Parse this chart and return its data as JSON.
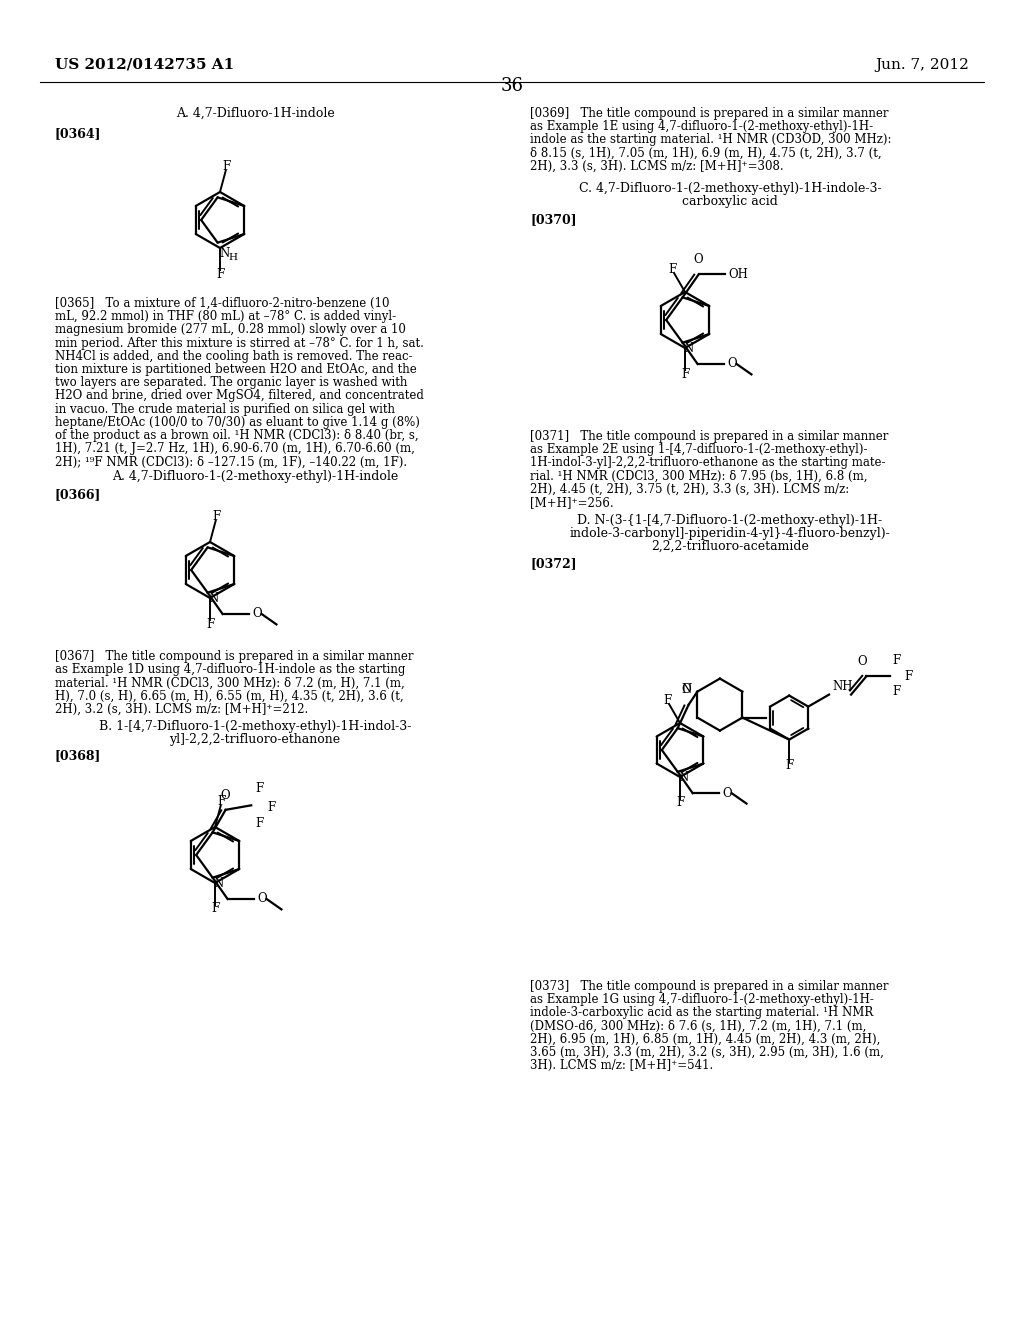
{
  "bg": "#ffffff",
  "header_left": "US 2012/0142735 A1",
  "header_right": "Jun. 7, 2012",
  "page_num": "36",
  "texts": {
    "sec_a1": "A. 4,7-Difluoro-1H-indole",
    "ref364": "[0364]",
    "par365_lines": [
      "[0365]   To a mixture of 1,4-difluoro-2-nitro-benzene (10",
      "mL, 92.2 mmol) in THF (80 mL) at –78° C. is added vinyl-",
      "magnesium bromide (277 mL, 0.28 mmol) slowly over a 10",
      "min period. After this mixture is stirred at –78° C. for 1 h, sat.",
      "NH4Cl is added, and the cooling bath is removed. The reac-",
      "tion mixture is partitioned between H2O and EtOAc, and the",
      "two layers are separated. The organic layer is washed with",
      "H2O and brine, dried over MgSO4, filtered, and concentrated",
      "in vacuo. The crude material is purified on silica gel with",
      "heptane/EtOAc (100/0 to 70/30) as eluant to give 1.14 g (8%)",
      "of the product as a brown oil. ¹H NMR (CDCl3): δ 8.40 (br, s,",
      "1H), 7.21 (t, J=2.7 Hz, 1H), 6.90-6.70 (m, 1H), 6.70-6.60 (m,",
      "2H); ¹⁹F NMR (CDCl3): δ –127.15 (m, 1F), –140.22 (m, 1F)."
    ],
    "sec_a2": "A. 4,7-Difluoro-1-(2-methoxy-ethyl)-1H-indole",
    "ref366": "[0366]",
    "par367_lines": [
      "[0367]   The title compound is prepared in a similar manner",
      "as Example 1D using 4,7-difluoro-1H-indole as the starting",
      "material. ¹H NMR (CDCl3, 300 MHz): δ 7.2 (m, H), 7.1 (m,",
      "H), 7.0 (s, H), 6.65 (m, H), 6.55 (m, H), 4.35 (t, 2H), 3.6 (t,",
      "2H), 3.2 (s, 3H). LCMS m/z: [M+H]⁺=212."
    ],
    "sec_b": [
      "B. 1-[4,7-Difluoro-1-(2-methoxy-ethyl)-1H-indol-3-",
      "yl]-2,2,2-trifluoro-ethanone"
    ],
    "ref368": "[0368]",
    "par369_lines": [
      "[0369]   The title compound is prepared in a similar manner",
      "as Example 1E using 4,7-difluoro-1-(2-methoxy-ethyl)-1H-",
      "indole as the starting material. ¹H NMR (CD3OD, 300 MHz):",
      "δ 8.15 (s, 1H), 7.05 (m, 1H), 6.9 (m, H), 4.75 (t, 2H), 3.7 (t,",
      "2H), 3.3 (s, 3H). LCMS m/z: [M+H]⁺=308."
    ],
    "sec_c": [
      "C. 4,7-Difluoro-1-(2-methoxy-ethyl)-1H-indole-3-",
      "carboxylic acid"
    ],
    "ref370": "[0370]",
    "par371_lines": [
      "[0371]   The title compound is prepared in a similar manner",
      "as Example 2E using 1-[4,7-difluoro-1-(2-methoxy-ethyl)-",
      "1H-indol-3-yl]-2,2,2-trifluoro-ethanone as the starting mate-",
      "rial. ¹H NMR (CDCl3, 300 MHz): δ 7.95 (bs, 1H), 6.8 (m,",
      "2H), 4.45 (t, 2H), 3.75 (t, 2H), 3.3 (s, 3H). LCMS m/z:",
      "[M+H]⁺=256."
    ],
    "sec_d": [
      "D. N-(3-{1-[4,7-Difluoro-1-(2-methoxy-ethyl)-1H-",
      "indole-3-carbonyl]-piperidin-4-yl}-4-fluoro-benzyl)-",
      "2,2,2-trifluoro-acetamide"
    ],
    "ref372": "[0372]",
    "par373_lines": [
      "[0373]   The title compound is prepared in a similar manner",
      "as Example 1G using 4,7-difluoro-1-(2-methoxy-ethyl)-1H-",
      "indole-3-carboxylic acid as the starting material. ¹H NMR",
      "(DMSO-d6, 300 MHz): δ 7.6 (s, 1H), 7.2 (m, 1H), 7.1 (m,",
      "2H), 6.95 (m, 1H), 6.85 (m, 1H), 4.45 (m, 2H), 4.3 (m, 2H),",
      "3.65 (m, 3H), 3.3 (m, 2H), 3.2 (s, 3H), 2.95 (m, 3H), 1.6 (m,",
      "3H). LCMS m/z: [M+H]⁺=541."
    ]
  }
}
